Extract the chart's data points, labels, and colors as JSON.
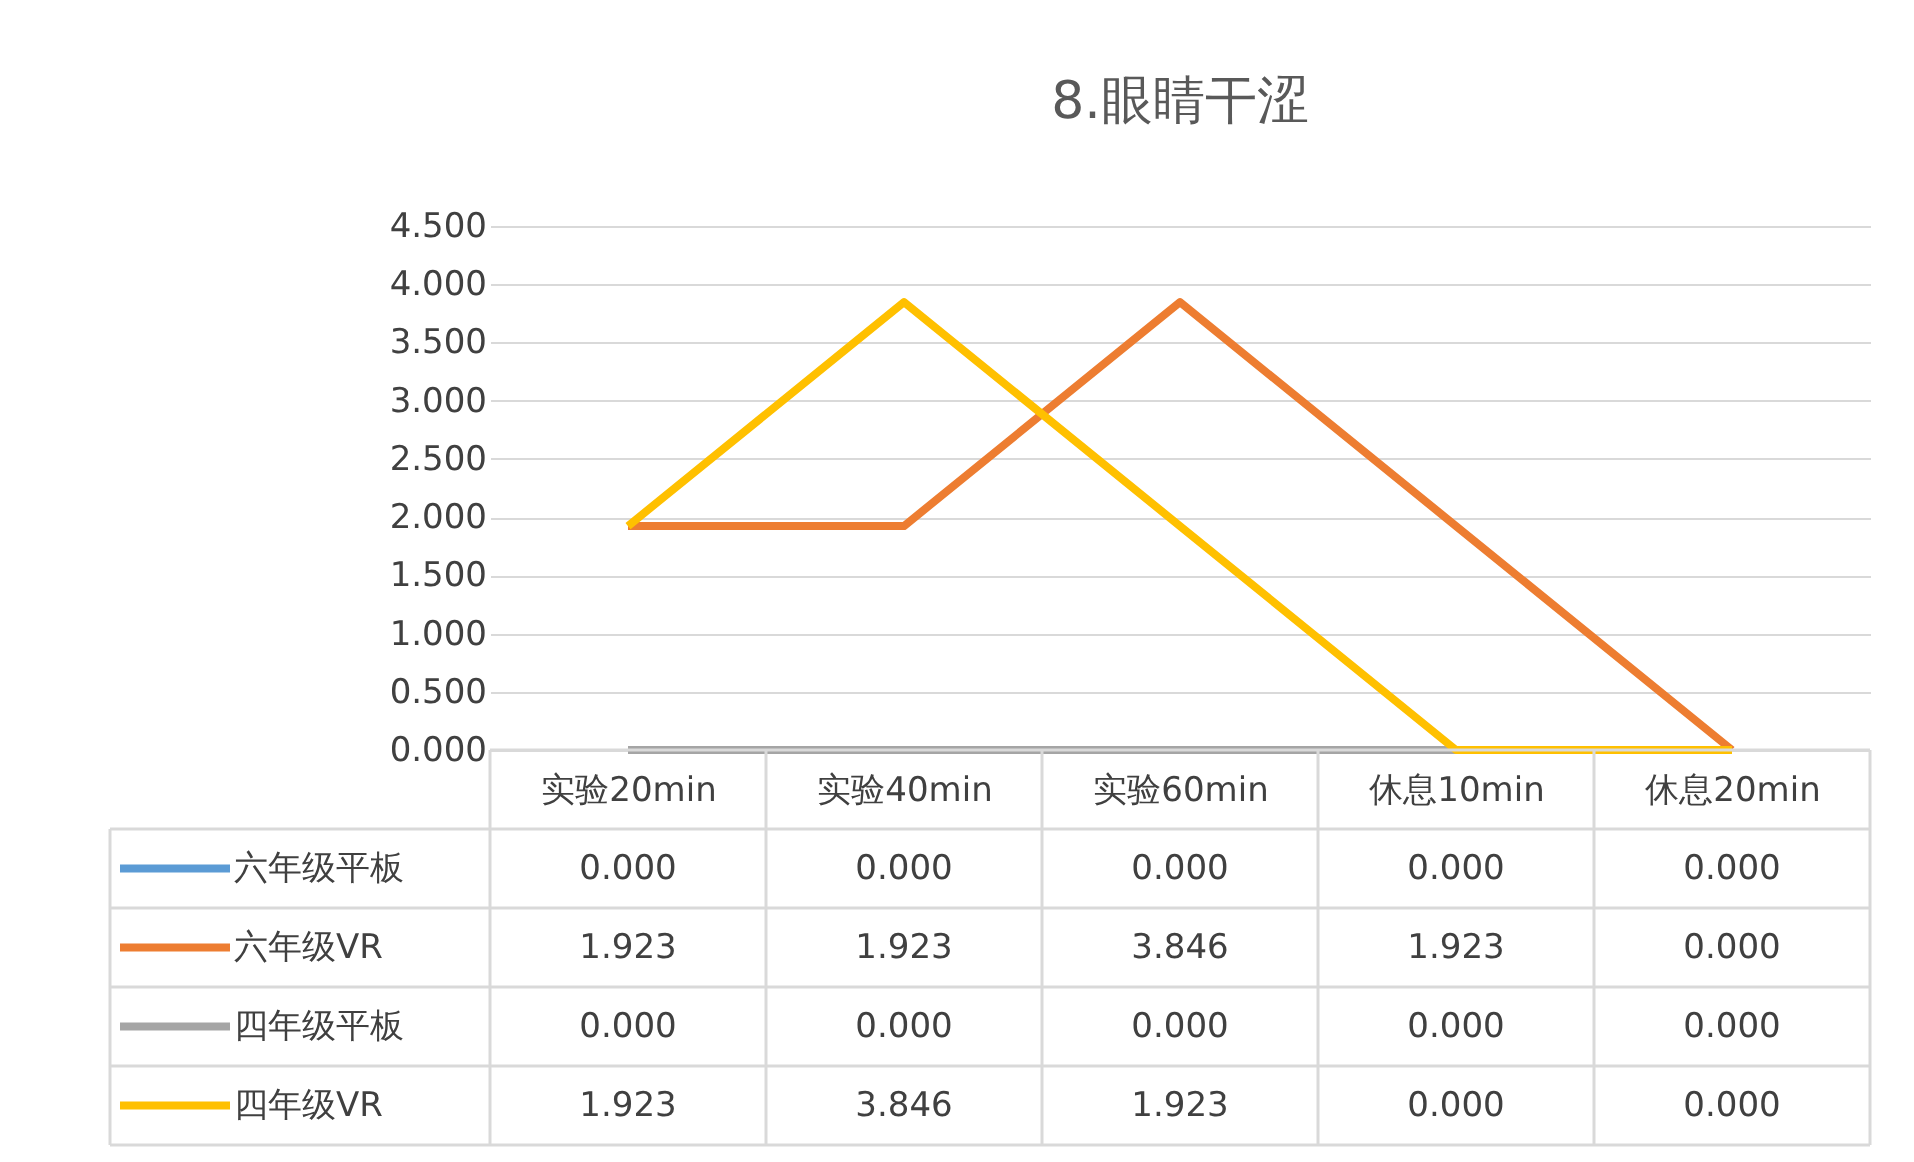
{
  "chart_data": {
    "type": "line",
    "title": "8.眼睛干涩",
    "categories": [
      "实验20min",
      "实验40min",
      "实验60min",
      "休息10min",
      "休息20min"
    ],
    "series": [
      {
        "name": "六年级平板",
        "color": "#5b9bd5",
        "values": [
          null,
          null,
          null,
          null,
          null
        ],
        "value_labels": [
          "0.000",
          "0.000",
          "0.000",
          "0.000",
          "0.000"
        ]
      },
      {
        "name": "六年级VR",
        "color": "#ed7d31",
        "values": [
          1.923,
          1.923,
          3.846,
          1.923,
          0
        ],
        "value_labels": [
          "1.923",
          "1.923",
          "3.846",
          "1.923",
          "0.000"
        ]
      },
      {
        "name": "四年级平板",
        "color": "#a5a5a5",
        "values": [
          0,
          0,
          0,
          0,
          0
        ],
        "value_labels": [
          "0.000",
          "0.000",
          "0.000",
          "0.000",
          "0.000"
        ]
      },
      {
        "name": "四年级VR",
        "color": "#ffc000",
        "values": [
          1.923,
          3.846,
          1.923,
          0,
          0
        ],
        "value_labels": [
          "1.923",
          "3.846",
          "1.923",
          "0.000",
          "0.000"
        ]
      }
    ],
    "ylim": [
      0,
      4.5
    ],
    "yticks": [
      {
        "value": 0,
        "label": "0.000"
      },
      {
        "value": 0.5,
        "label": "0.500"
      },
      {
        "value": 1,
        "label": "1.000"
      },
      {
        "value": 1.5,
        "label": "1.500"
      },
      {
        "value": 2,
        "label": "2.000"
      },
      {
        "value": 2.5,
        "label": "2.500"
      },
      {
        "value": 3,
        "label": "3.000"
      },
      {
        "value": 3.5,
        "label": "3.500"
      },
      {
        "value": 4,
        "label": "4.000"
      },
      {
        "value": 4.5,
        "label": "4.500"
      }
    ],
    "grid": "y",
    "legend": "bottom",
    "marker": "none",
    "line_style": "solid"
  }
}
